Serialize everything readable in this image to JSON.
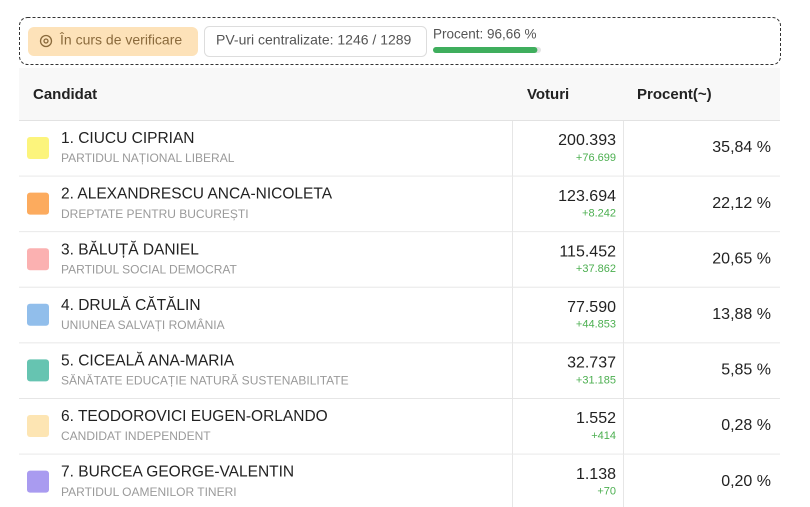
{
  "status": {
    "badge": "În curs de verificare",
    "pv": "PV-uri centralizate: 1246 / 1289",
    "procent": "Procent: 96,66 %",
    "progress": 96.66
  },
  "table": {
    "headers": [
      "Candidat",
      "Voturi",
      "Procent(~)"
    ],
    "rows": [
      {
        "color": "#fcf47c",
        "name": "1. CIUCU CIPRIAN",
        "party": "PARTIDUL NAȚIONAL LIBERAL",
        "votes": "200.393",
        "delta": "+76.699",
        "percent": "35,84 %"
      },
      {
        "color": "#fcab5e",
        "name": "2. ALEXANDRESCU ANCA-NICOLETA",
        "party": "DREPTATE PENTRU BUCUREȘTI",
        "votes": "123.694",
        "delta": "+8.242",
        "percent": "22,12 %"
      },
      {
        "color": "#fbb1b1",
        "name": "3. BĂLUȚĂ DANIEL",
        "party": "PARTIDUL SOCIAL DEMOCRAT",
        "votes": "115.452",
        "delta": "+37.862",
        "percent": "20,65 %"
      },
      {
        "color": "#91beeb",
        "name": "4. DRULĂ CĂTĂLIN",
        "party": "UNIUNEA SALVAȚI ROMÂNIA",
        "votes": "77.590",
        "delta": "+44.853",
        "percent": "13,88 %"
      },
      {
        "color": "#66c4b1",
        "name": "5. CICEALĂ ANA-MARIA",
        "party": "SĂNĂTATE EDUCAȚIE NATURĂ SUSTENABILITATE",
        "votes": "32.737",
        "delta": "+31.185",
        "percent": "5,85 %"
      },
      {
        "color": "#fde5b3",
        "name": "6. TEODOROVICI EUGEN-ORLANDO",
        "party": "CANDIDAT INDEPENDENT",
        "votes": "1.552",
        "delta": "+414",
        "percent": "0,28 %"
      },
      {
        "color": "#a99bf0",
        "name": "7. BURCEA GEORGE-VALENTIN",
        "party": "PARTIDUL OAMENILOR TINERI",
        "votes": "1.138",
        "delta": "+70",
        "percent": "0,20 %"
      }
    ]
  }
}
